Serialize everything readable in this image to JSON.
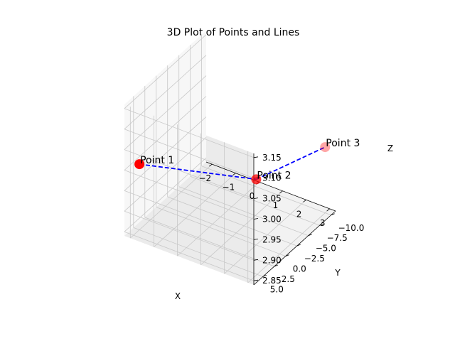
{
  "chart_data": {
    "type": "scatter",
    "title": "3D Plot of Points and Lines",
    "xlabel": "X",
    "ylabel": "Y",
    "zlabel": "Z",
    "xlim": [
      -2.25,
      3.25
    ],
    "ylim": [
      -11.0,
      7.0
    ],
    "zlim": [
      2.84,
      3.16
    ],
    "xticks": [
      -2,
      -1,
      0,
      1,
      2,
      3
    ],
    "yticks": [
      -10.0,
      -7.5,
      -5.0,
      -2.5,
      0.0,
      2.5,
      5.0
    ],
    "zticks": [
      2.85,
      2.9,
      2.95,
      3.0,
      3.05,
      3.1,
      3.15
    ],
    "xtick_labels": [
      "−2",
      "−1",
      "0",
      "1",
      "2",
      "3"
    ],
    "ytick_labels": [
      "−10.0",
      "−7.5",
      "−5.0",
      "−2.5",
      "0.0",
      "2.5",
      "5.0"
    ],
    "ztick_labels": [
      "2.85",
      "2.90",
      "2.95",
      "3.00",
      "3.05",
      "3.10",
      "3.15"
    ],
    "grid": true,
    "points": [
      {
        "label": "Point 1",
        "x": -2,
        "y": 5,
        "z": 3.0
      },
      {
        "label": "Point 2",
        "x": 2,
        "y": 0,
        "z": 3.0
      },
      {
        "label": "Point 3",
        "x": 3,
        "y": -10,
        "z": 3.0
      }
    ],
    "point_color": "#ff0000",
    "line_color": "#0000ff",
    "line_style": "dashed"
  }
}
